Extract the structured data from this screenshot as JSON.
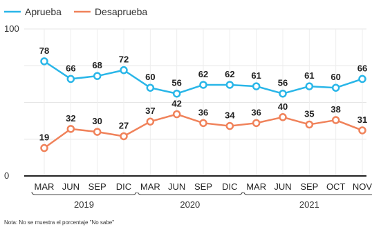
{
  "chart_data": {
    "type": "line",
    "title": "",
    "xlabel": "",
    "ylabel": "",
    "ylim": [
      0,
      100
    ],
    "y_ticks": [
      "100",
      "0"
    ],
    "categories": [
      "MAR",
      "JUN",
      "SEP",
      "DIC",
      "MAR",
      "JUN",
      "SEP",
      "DIC",
      "MAR",
      "JUN",
      "SEP",
      "OCT",
      "NOV"
    ],
    "years": [
      {
        "label": "2019",
        "from": 0,
        "to": 3
      },
      {
        "label": "2020",
        "from": 4,
        "to": 7
      },
      {
        "label": "2021",
        "from": 8,
        "to": 12
      }
    ],
    "series": [
      {
        "name": "Aprueba",
        "color": "#29b6e8",
        "values": [
          78,
          66,
          68,
          72,
          60,
          56,
          62,
          62,
          61,
          56,
          61,
          60,
          66
        ]
      },
      {
        "name": "Desaprueba",
        "color": "#f0825a",
        "values": [
          19,
          32,
          30,
          27,
          37,
          42,
          36,
          34,
          36,
          40,
          35,
          38,
          31
        ]
      }
    ],
    "legend_position": "top-left",
    "grid": true,
    "note": "Nota: No se muestra el porcentaje \"No sabe\""
  }
}
